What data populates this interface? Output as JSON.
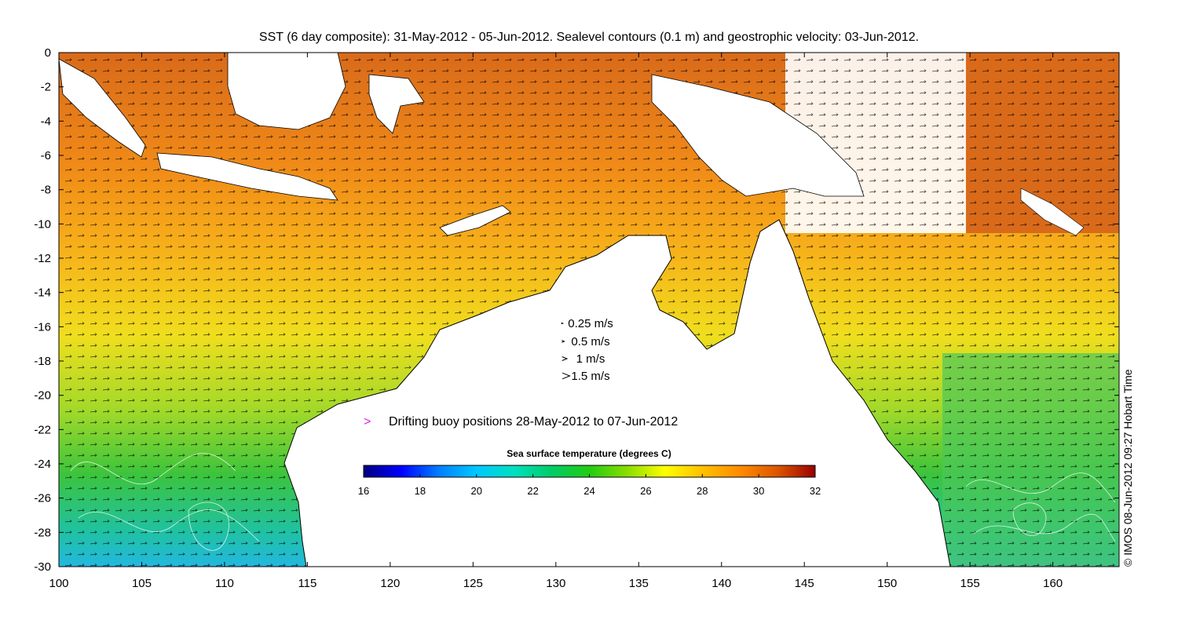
{
  "title": "SST (6 day composite): 31-May-2012 - 05-Jun-2012. Sealevel contours (0.1 m) and geostrophic velocity: 03-Jun-2012.",
  "credit": "© IMOS 08-Jun-2012 09:27 Hobart Time",
  "map": {
    "lon_range": [
      100,
      164
    ],
    "lat_range": [
      -30,
      0
    ],
    "x_ticks": [
      "100",
      "105",
      "110",
      "115",
      "120",
      "125",
      "130",
      "135",
      "140",
      "145",
      "150",
      "155",
      "160"
    ],
    "y_ticks": [
      "0",
      "-2",
      "-4",
      "-6",
      "-8",
      "-10",
      "-12",
      "-14",
      "-16",
      "-18",
      "-20",
      "-22",
      "-24",
      "-26",
      "-28",
      "-30"
    ],
    "land_color": "#ffffff",
    "arrow_color": "#000000",
    "contour_color": "#ffffff"
  },
  "velocity_legend": [
    {
      "label": "0.25 m/s",
      "speed": 0.25
    },
    {
      "label": "0.5 m/s",
      "speed": 0.5
    },
    {
      "label": "1 m/s",
      "speed": 1
    },
    {
      "label": "1.5 m/s",
      "speed": 1.5
    }
  ],
  "buoy_legend": {
    "label": "Drifting buoy positions 28-May-2012 to 07-Jun-2012",
    "color": "#e020e0"
  },
  "colorbar": {
    "title": "Sea surface temperature (degrees C)",
    "min": 16,
    "max": 32,
    "ticks": [
      "16",
      "18",
      "20",
      "22",
      "24",
      "26",
      "28",
      "30",
      "32"
    ],
    "colors": [
      "#00007f",
      "#0000ff",
      "#007fff",
      "#00c8ff",
      "#00e0c0",
      "#00cc66",
      "#22cc11",
      "#88dd00",
      "#ffff00",
      "#ffc000",
      "#ff8c00",
      "#dd5500",
      "#990000"
    ]
  }
}
